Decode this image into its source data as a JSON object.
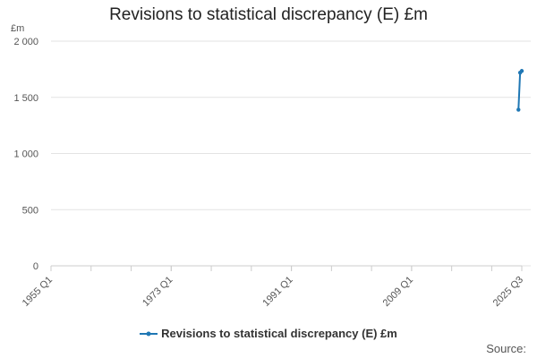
{
  "chart_data": {
    "type": "line",
    "title": "Revisions to statistical discrepancy (E) £m",
    "ylabel": "£m",
    "xlabel": "",
    "ylim": [
      0,
      2000
    ],
    "yticks": [
      0,
      500,
      1000,
      1500,
      2000
    ],
    "ytick_labels": [
      "0",
      "500",
      "1 000",
      "1 500",
      "2 000"
    ],
    "x_range_quarters": [
      "1955 Q1",
      "2025 Q3"
    ],
    "xtick_labels": [
      "1955 Q1",
      "1973 Q1",
      "1991 Q1",
      "2009 Q1",
      "2025 Q3"
    ],
    "grid": true,
    "legend_position": "bottom",
    "series": [
      {
        "name": "Revisions to statistical discrepancy (E) £m",
        "color": "#1f77b4",
        "x": [
          "2025 Q1",
          "2025 Q2",
          "2025 Q3"
        ],
        "values": [
          1390,
          1720,
          1735
        ]
      }
    ]
  },
  "source": "Source:"
}
